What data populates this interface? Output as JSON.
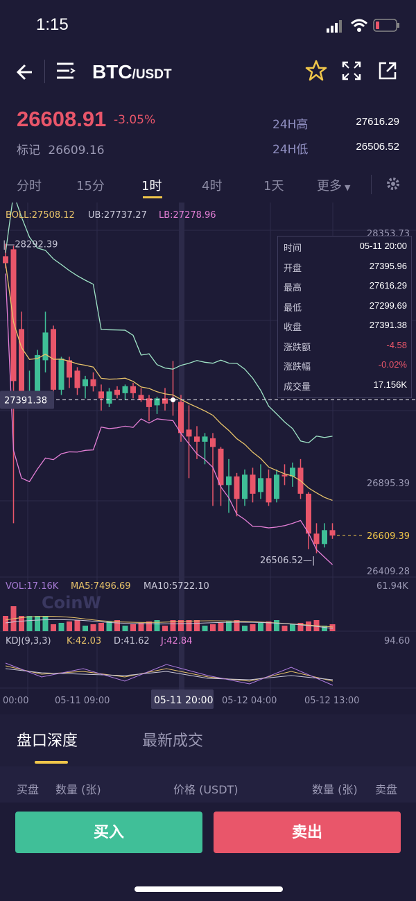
{
  "status": {
    "time": "1:15"
  },
  "header": {
    "base": "BTC",
    "quote": "/USDT"
  },
  "ticker": {
    "price": "26608.91",
    "change_pct": "-3.05%",
    "mark_label": "标记",
    "mark_value": "26609.16",
    "high_label": "24H高",
    "high_value": "27616.29",
    "low_label": "24H低",
    "low_value": "26506.52"
  },
  "tabs": [
    {
      "label": "分时"
    },
    {
      "label": "15分"
    },
    {
      "label": "1时",
      "active": true
    },
    {
      "label": "4时"
    },
    {
      "label": "1天"
    },
    {
      "label": "更多"
    }
  ],
  "indicators": {
    "boll": "BOLL:27508.12",
    "ub": "UB:27737.27",
    "lb": "LB:27278.96",
    "vol": "VOL:17.16K",
    "ma5": "MA5:7496.69",
    "ma10": "MA10:5722.10",
    "kdj": "KDJ(9,3,3)",
    "k": "K:42.03",
    "d": "D:41.62",
    "j": "J:42.84"
  },
  "chart_labels": {
    "max_price": "28292.39",
    "axis_top": "28353.73",
    "axis_mid": "26895.39",
    "axis_bottom": "26409.28",
    "min_price": "26506.52",
    "current_price": "26609.39",
    "crosshair_price": "27391.38",
    "crosshair_time": "05-11 20:00",
    "vol_max": "61.94K",
    "kdj_max": "94.60",
    "watermark": "CoinW"
  },
  "time_axis": [
    "00:00",
    "05-11 09:00",
    "05-12 04:00",
    "05-12 13:00"
  ],
  "tooltip": [
    {
      "k": "时间",
      "v": "05-11 20:00"
    },
    {
      "k": "开盘",
      "v": "27395.96"
    },
    {
      "k": "最高",
      "v": "27616.29"
    },
    {
      "k": "最低",
      "v": "27299.69"
    },
    {
      "k": "收盘",
      "v": "27391.38"
    },
    {
      "k": "涨跌额",
      "v": "-4.58",
      "neg": true
    },
    {
      "k": "涨跌幅",
      "v": "-0.02%",
      "neg": true
    },
    {
      "k": "成交量",
      "v": "17.156K"
    }
  ],
  "bottom_tabs": {
    "depth": "盘口深度",
    "trades": "最新成交"
  },
  "table_header": {
    "buy": "买盘",
    "qty1": "数量 (张)",
    "price": "价格 (USDT)",
    "qty2": "数量 (张)",
    "sell": "卖盘"
  },
  "actions": {
    "buy": "买入",
    "sell": "卖出"
  },
  "colors": {
    "bg": "#1d1b36",
    "up": "#3fbf97",
    "down": "#e9566a",
    "accent": "#f0c64a"
  },
  "candles": [
    {
      "o": 28220,
      "h": 28292,
      "l": 28150,
      "c": 28180
    },
    {
      "o": 28260,
      "h": 28280,
      "l": 26680,
      "c": 27500
    },
    {
      "o": 27800,
      "h": 27900,
      "l": 27380,
      "c": 27400
    },
    {
      "o": 27400,
      "h": 27560,
      "l": 27350,
      "c": 27420
    },
    {
      "o": 27400,
      "h": 27680,
      "l": 27350,
      "c": 27650
    },
    {
      "o": 27620,
      "h": 27900,
      "l": 27550,
      "c": 27780
    },
    {
      "o": 27800,
      "h": 27820,
      "l": 27350,
      "c": 27450
    },
    {
      "o": 27450,
      "h": 27640,
      "l": 27420,
      "c": 27630
    },
    {
      "o": 27620,
      "h": 27640,
      "l": 27460,
      "c": 27520
    },
    {
      "o": 27560,
      "h": 27580,
      "l": 27420,
      "c": 27460
    },
    {
      "o": 27470,
      "h": 27530,
      "l": 27400,
      "c": 27510
    },
    {
      "o": 27510,
      "h": 27550,
      "l": 27440,
      "c": 27470
    },
    {
      "o": 27440,
      "h": 27480,
      "l": 27330,
      "c": 27400
    },
    {
      "o": 27370,
      "h": 27460,
      "l": 27350,
      "c": 27440
    },
    {
      "o": 27450,
      "h": 27470,
      "l": 27400,
      "c": 27420
    },
    {
      "o": 27430,
      "h": 27480,
      "l": 27390,
      "c": 27470
    },
    {
      "o": 27470,
      "h": 27490,
      "l": 27400,
      "c": 27430
    },
    {
      "o": 27420,
      "h": 27460,
      "l": 27380,
      "c": 27390
    },
    {
      "o": 27400,
      "h": 27420,
      "l": 27270,
      "c": 27350
    },
    {
      "o": 27360,
      "h": 27410,
      "l": 27310,
      "c": 27400
    },
    {
      "o": 27400,
      "h": 27460,
      "l": 27330,
      "c": 27370
    },
    {
      "o": 27396,
      "h": 27616,
      "l": 27300,
      "c": 27391
    },
    {
      "o": 27380,
      "h": 27420,
      "l": 27150,
      "c": 27200
    },
    {
      "o": 27220,
      "h": 27360,
      "l": 26940,
      "c": 27180
    },
    {
      "o": 27180,
      "h": 27240,
      "l": 27050,
      "c": 27150
    },
    {
      "o": 27150,
      "h": 27200,
      "l": 27020,
      "c": 27180
    },
    {
      "o": 27170,
      "h": 27200,
      "l": 26780,
      "c": 27120
    },
    {
      "o": 27110,
      "h": 27120,
      "l": 26780,
      "c": 26900
    },
    {
      "o": 26900,
      "h": 27050,
      "l": 26740,
      "c": 26950
    },
    {
      "o": 26950,
      "h": 26970,
      "l": 26720,
      "c": 26820
    },
    {
      "o": 26820,
      "h": 26990,
      "l": 26780,
      "c": 26960
    },
    {
      "o": 26960,
      "h": 27000,
      "l": 26800,
      "c": 26850
    },
    {
      "o": 26860,
      "h": 27020,
      "l": 26820,
      "c": 26940
    },
    {
      "o": 26940,
      "h": 26990,
      "l": 26780,
      "c": 26800
    },
    {
      "o": 26820,
      "h": 26990,
      "l": 26800,
      "c": 26960
    },
    {
      "o": 26960,
      "h": 27020,
      "l": 26900,
      "c": 26950
    },
    {
      "o": 26950,
      "h": 27030,
      "l": 26890,
      "c": 27000
    },
    {
      "o": 27000,
      "h": 27050,
      "l": 26820,
      "c": 26850
    },
    {
      "o": 26850,
      "h": 26860,
      "l": 26530,
      "c": 26620
    },
    {
      "o": 26620,
      "h": 26680,
      "l": 26507,
      "c": 26560
    },
    {
      "o": 26560,
      "h": 26680,
      "l": 26540,
      "c": 26640
    },
    {
      "o": 26640,
      "h": 26680,
      "l": 26590,
      "c": 26609
    }
  ]
}
